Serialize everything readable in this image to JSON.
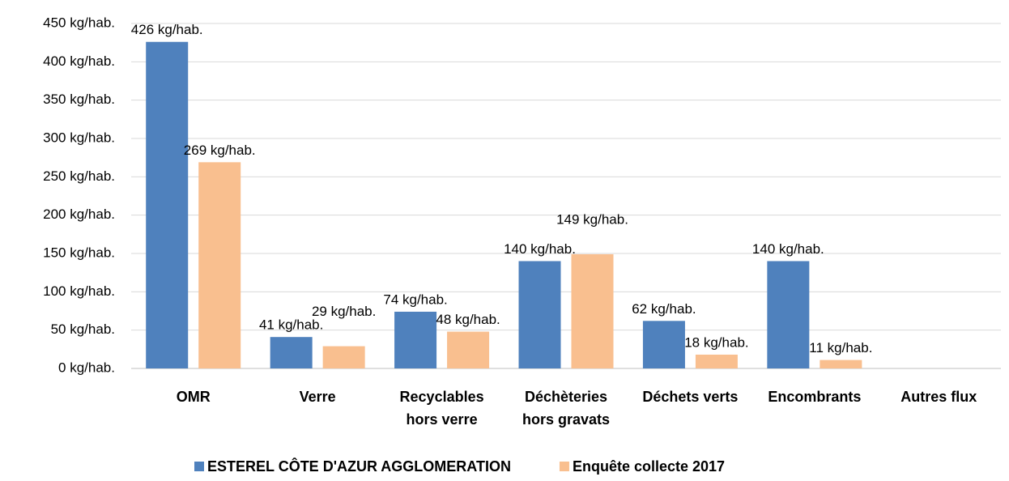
{
  "chart_data": {
    "type": "bar",
    "categories": [
      "OMR",
      "Verre",
      "Recyclables hors verre",
      "Déchèteries hors gravats",
      "Déchets verts",
      "Encombrants",
      "Autres flux"
    ],
    "series": [
      {
        "name": "ESTEREL CÔTE D'AZUR AGGLOMERATION",
        "color": "#4f81bd",
        "values": [
          426,
          41,
          74,
          140,
          62,
          140,
          null
        ],
        "value_labels": [
          "426 kg/hab.",
          "41 kg/hab.",
          "74 kg/hab.",
          "140 kg/hab.",
          "62 kg/hab.",
          "140 kg/hab.",
          null
        ]
      },
      {
        "name": "Enquête collecte 2017",
        "color": "#f9bf8f",
        "values": [
          269,
          29,
          48,
          149,
          18,
          11,
          null
        ],
        "value_labels": [
          "269 kg/hab.",
          "29 kg/hab.",
          "48 kg/hab.",
          "149 kg/hab.",
          "18 kg/hab.",
          "11 kg/hab.",
          null
        ]
      }
    ],
    "ylim": [
      0,
      450
    ],
    "yticks": [
      {
        "value": 0,
        "label": "0 kg/hab."
      },
      {
        "value": 50,
        "label": "50 kg/hab."
      },
      {
        "value": 100,
        "label": "100 kg/hab."
      },
      {
        "value": 150,
        "label": "150 kg/hab."
      },
      {
        "value": 200,
        "label": "200 kg/hab."
      },
      {
        "value": 250,
        "label": "250 kg/hab."
      },
      {
        "value": 300,
        "label": "300 kg/hab."
      },
      {
        "value": 350,
        "label": "350 kg/hab."
      },
      {
        "value": 400,
        "label": "400 kg/hab."
      },
      {
        "value": 450,
        "label": "450 kg/hab."
      }
    ],
    "grid": true,
    "legend": "bottom"
  }
}
